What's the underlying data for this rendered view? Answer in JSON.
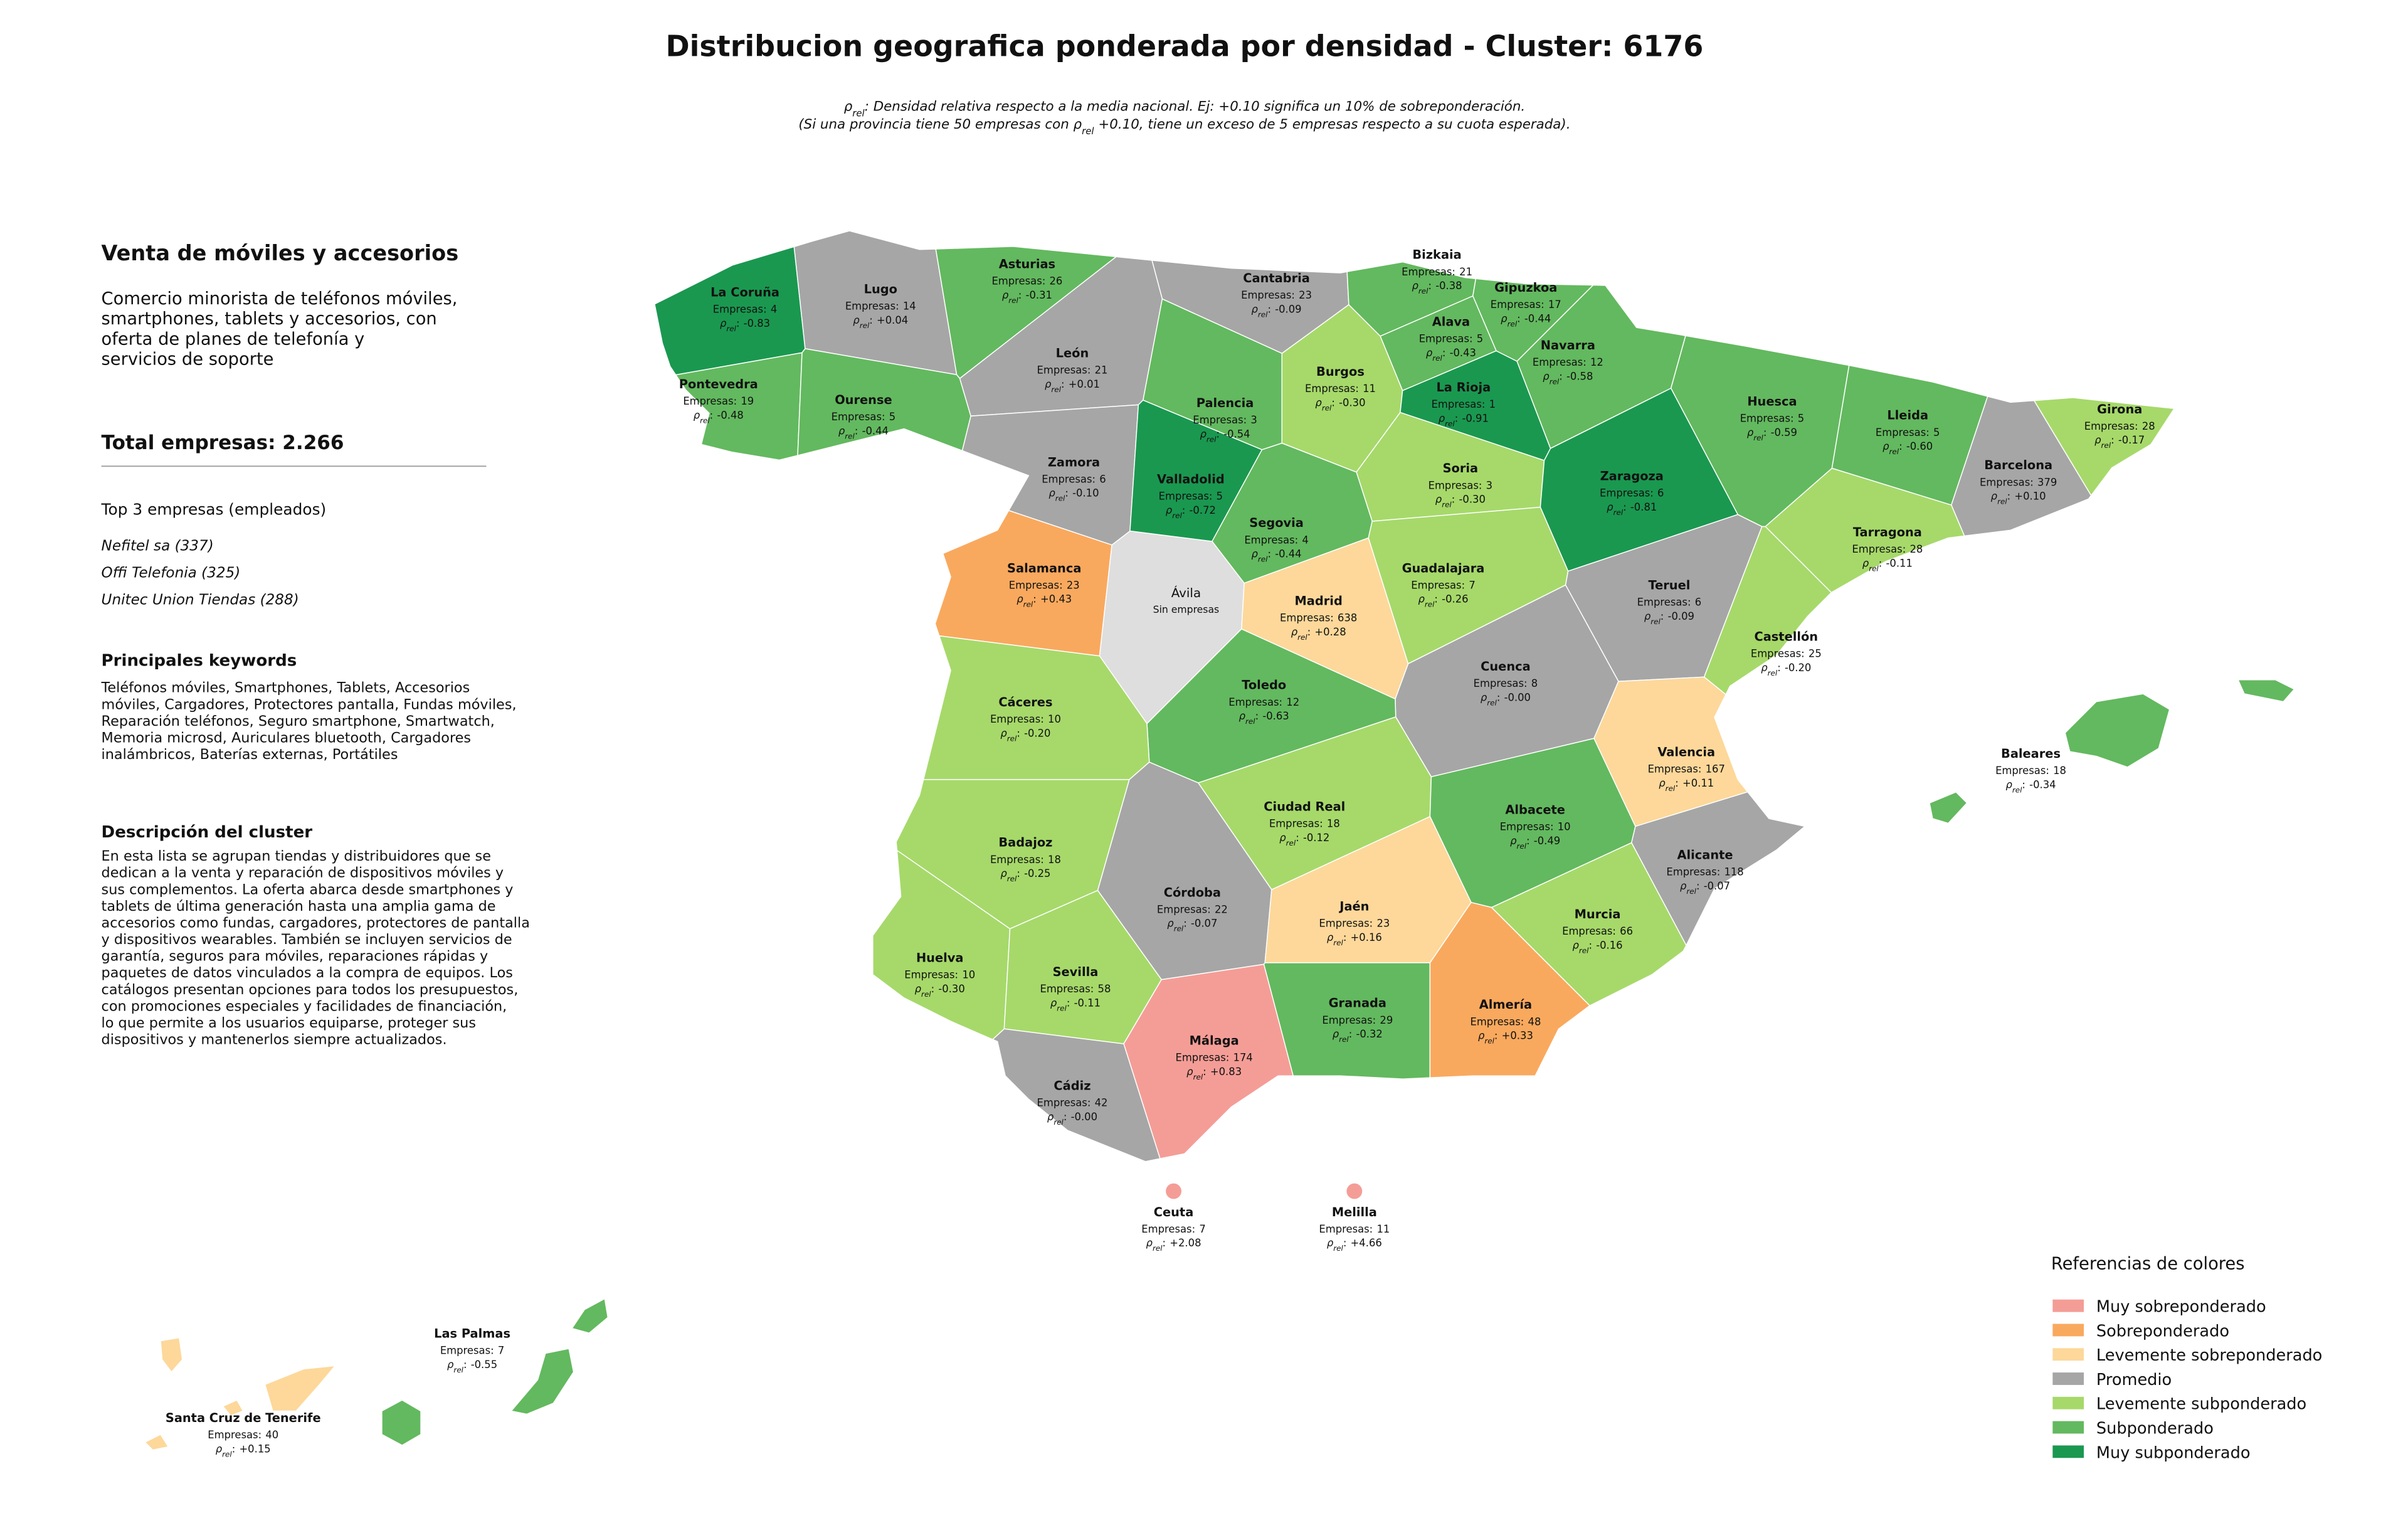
{
  "title": "Distribucion geografica ponderada por densidad - Cluster: 6176",
  "subtitle": [
    [
      {
        "text": "ρ"
      },
      {
        "sub": "rel"
      },
      {
        "text": ": Densidad relativa respecto a la media nacional. Ej: +0.10 significa un 10% de sobreponderación."
      }
    ],
    [
      {
        "text": "(Si una provincia tiene 50 empresas con "
      },
      {
        "text": "ρ"
      },
      {
        "sub": "rel"
      },
      {
        "text": " +0.10, tiene un exceso de 5 empresas respecto a su cuota esperada)."
      }
    ]
  ],
  "sidebar": {
    "heading": "Venta de móviles y accesorios",
    "description_lines": [
      "Comercio minorista de teléfonos móviles,",
      "smartphones, tablets y accesorios, con",
      "oferta de planes de telefonía y",
      "servicios de soporte"
    ],
    "total": "Total empresas: 2.266",
    "top_title": "Top 3 empresas (empleados)",
    "top_companies": [
      "Nefitel sa (337)",
      "Offi Telefonia (325)",
      "Unitec Union Tiendas (288)"
    ],
    "keywords_title": "Principales keywords",
    "keywords_lines": [
      "Teléfonos móviles, Smartphones, Tablets, Accesorios",
      "móviles, Cargadores, Protectores pantalla, Fundas móviles,",
      "Reparación teléfonos, Seguro smartphone, Smartwatch,",
      "Memoria microsd, Auriculares bluetooth, Cargadores",
      "inalámbricos, Baterías externas, Portátiles"
    ],
    "cluster_title": "Descripción del cluster",
    "cluster_lines": [
      "En esta lista se agrupan tiendas y distribuidores que se",
      "dedican a la venta y reparación de dispositivos móviles y",
      "sus complementos. La oferta abarca desde smartphones y",
      "tablets de última generación hasta una amplia gama de",
      "accesorios como fundas, cargadores, protectores de pantalla",
      "y dispositivos wearables. También se incluyen servicios de",
      "garantía, seguros para móviles, reparaciones rápidas y",
      "paquetes de datos vinculados a la compra de equipos. Los",
      "catálogos presentan opciones para todos los presupuestos,",
      "con promociones especiales y facilidades de financiación,",
      "lo que permite a los usuarios equiparse, proteger sus",
      "dispositivos y mantenerlos siempre actualizados."
    ]
  },
  "map": {
    "empresas_label": "Empresas:",
    "rho_symbol": "ρ",
    "rho_subscript": "rel",
    "rho_separator": ":",
    "no_data_color": "#dedede",
    "provinces": [
      {
        "name": "La Coruña",
        "empresas": 4,
        "rho": "-0.83",
        "category": 6
      },
      {
        "name": "Lugo",
        "empresas": 14,
        "rho": "+0.04",
        "category": 3
      },
      {
        "name": "Asturias",
        "empresas": 26,
        "rho": "-0.31",
        "category": 5
      },
      {
        "name": "Cantabria",
        "empresas": 23,
        "rho": "-0.09",
        "category": 3
      },
      {
        "name": "Bizkaia",
        "empresas": 21,
        "rho": "-0.38",
        "category": 5
      },
      {
        "name": "Gipuzkoa",
        "empresas": 17,
        "rho": "-0.44",
        "category": 5
      },
      {
        "name": "Alava",
        "empresas": 5,
        "rho": "-0.43",
        "category": 5
      },
      {
        "name": "Navarra",
        "empresas": 12,
        "rho": "-0.58",
        "category": 5
      },
      {
        "name": "Pontevedra",
        "empresas": 19,
        "rho": "-0.48",
        "category": 5
      },
      {
        "name": "Ourense",
        "empresas": 5,
        "rho": "-0.44",
        "category": 5
      },
      {
        "name": "León",
        "empresas": 21,
        "rho": "+0.01",
        "category": 3
      },
      {
        "name": "Palencia",
        "empresas": 3,
        "rho": "-0.54",
        "category": 5
      },
      {
        "name": "Burgos",
        "empresas": 11,
        "rho": "-0.30",
        "category": 4
      },
      {
        "name": "La Rioja",
        "empresas": 1,
        "rho": "-0.91",
        "category": 6
      },
      {
        "name": "Huesca",
        "empresas": 5,
        "rho": "-0.59",
        "category": 5
      },
      {
        "name": "Lleida",
        "empresas": 5,
        "rho": "-0.60",
        "category": 5
      },
      {
        "name": "Girona",
        "empresas": 28,
        "rho": "-0.17",
        "category": 4
      },
      {
        "name": "Zamora",
        "empresas": 6,
        "rho": "-0.10",
        "category": 3
      },
      {
        "name": "Valladolid",
        "empresas": 5,
        "rho": "-0.72",
        "category": 6
      },
      {
        "name": "Soria",
        "empresas": 3,
        "rho": "-0.30",
        "category": 4
      },
      {
        "name": "Zaragoza",
        "empresas": 6,
        "rho": "-0.81",
        "category": 6
      },
      {
        "name": "Barcelona",
        "empresas": 379,
        "rho": "+0.10",
        "category": 3
      },
      {
        "name": "Segovia",
        "empresas": 4,
        "rho": "-0.44",
        "category": 5
      },
      {
        "name": "Tarragona",
        "empresas": 28,
        "rho": "-0.11",
        "category": 4
      },
      {
        "name": "Salamanca",
        "empresas": 23,
        "rho": "+0.43",
        "category": 1
      },
      {
        "name": "Ávila",
        "note": "Sin empresas"
      },
      {
        "name": "Madrid",
        "empresas": 638,
        "rho": "+0.28",
        "category": 2
      },
      {
        "name": "Guadalajara",
        "empresas": 7,
        "rho": "-0.26",
        "category": 4
      },
      {
        "name": "Teruel",
        "empresas": 6,
        "rho": "-0.09",
        "category": 3
      },
      {
        "name": "Castellón",
        "empresas": 25,
        "rho": "-0.20",
        "category": 4
      },
      {
        "name": "Cuenca",
        "empresas": 8,
        "rho": "-0.00",
        "category": 3
      },
      {
        "name": "Toledo",
        "empresas": 12,
        "rho": "-0.63",
        "category": 5
      },
      {
        "name": "Cáceres",
        "empresas": 10,
        "rho": "-0.20",
        "category": 4
      },
      {
        "name": "Valencia",
        "empresas": 167,
        "rho": "+0.11",
        "category": 2
      },
      {
        "name": "Baleares",
        "empresas": 18,
        "rho": "-0.34",
        "category": 5
      },
      {
        "name": "Ciudad Real",
        "empresas": 18,
        "rho": "-0.12",
        "category": 4
      },
      {
        "name": "Albacete",
        "empresas": 10,
        "rho": "-0.49",
        "category": 5
      },
      {
        "name": "Badajoz",
        "empresas": 18,
        "rho": "-0.25",
        "category": 4
      },
      {
        "name": "Alicante",
        "empresas": 118,
        "rho": "-0.07",
        "category": 3
      },
      {
        "name": "Córdoba",
        "empresas": 22,
        "rho": "-0.07",
        "category": 3
      },
      {
        "name": "Jaén",
        "empresas": 23,
        "rho": "+0.16",
        "category": 2
      },
      {
        "name": "Murcia",
        "empresas": 66,
        "rho": "-0.16",
        "category": 4
      },
      {
        "name": "Huelva",
        "empresas": 10,
        "rho": "-0.30",
        "category": 4
      },
      {
        "name": "Sevilla",
        "empresas": 58,
        "rho": "-0.11",
        "category": 4
      },
      {
        "name": "Granada",
        "empresas": 29,
        "rho": "-0.32",
        "category": 5
      },
      {
        "name": "Almería",
        "empresas": 48,
        "rho": "+0.33",
        "category": 1
      },
      {
        "name": "Málaga",
        "empresas": 174,
        "rho": "+0.83",
        "category": 0
      },
      {
        "name": "Cádiz",
        "empresas": 42,
        "rho": "-0.00",
        "category": 3
      },
      {
        "name": "Ceuta",
        "empresas": 7,
        "rho": "+2.08",
        "category": 0
      },
      {
        "name": "Melilla",
        "empresas": 11,
        "rho": "+4.66",
        "category": 0
      },
      {
        "name": "Las Palmas",
        "empresas": 7,
        "rho": "-0.55",
        "category": 5
      },
      {
        "name": "Santa Cruz de Tenerife",
        "empresas": 40,
        "rho": "+0.15",
        "category": 2
      }
    ]
  },
  "legend": {
    "title": "Referencias de colores",
    "items": [
      {
        "label": "Muy sobreponderado",
        "color": "#f49d96"
      },
      {
        "label": "Sobreponderado",
        "color": "#f9a95e"
      },
      {
        "label": "Levemente sobreponderado",
        "color": "#fdd89a"
      },
      {
        "label": "Promedio",
        "color": "#a6a6a6"
      },
      {
        "label": "Levemente subponderado",
        "color": "#a6d96a"
      },
      {
        "label": "Subponderado",
        "color": "#63b95f"
      },
      {
        "label": "Muy subponderado",
        "color": "#1a9850"
      }
    ]
  }
}
